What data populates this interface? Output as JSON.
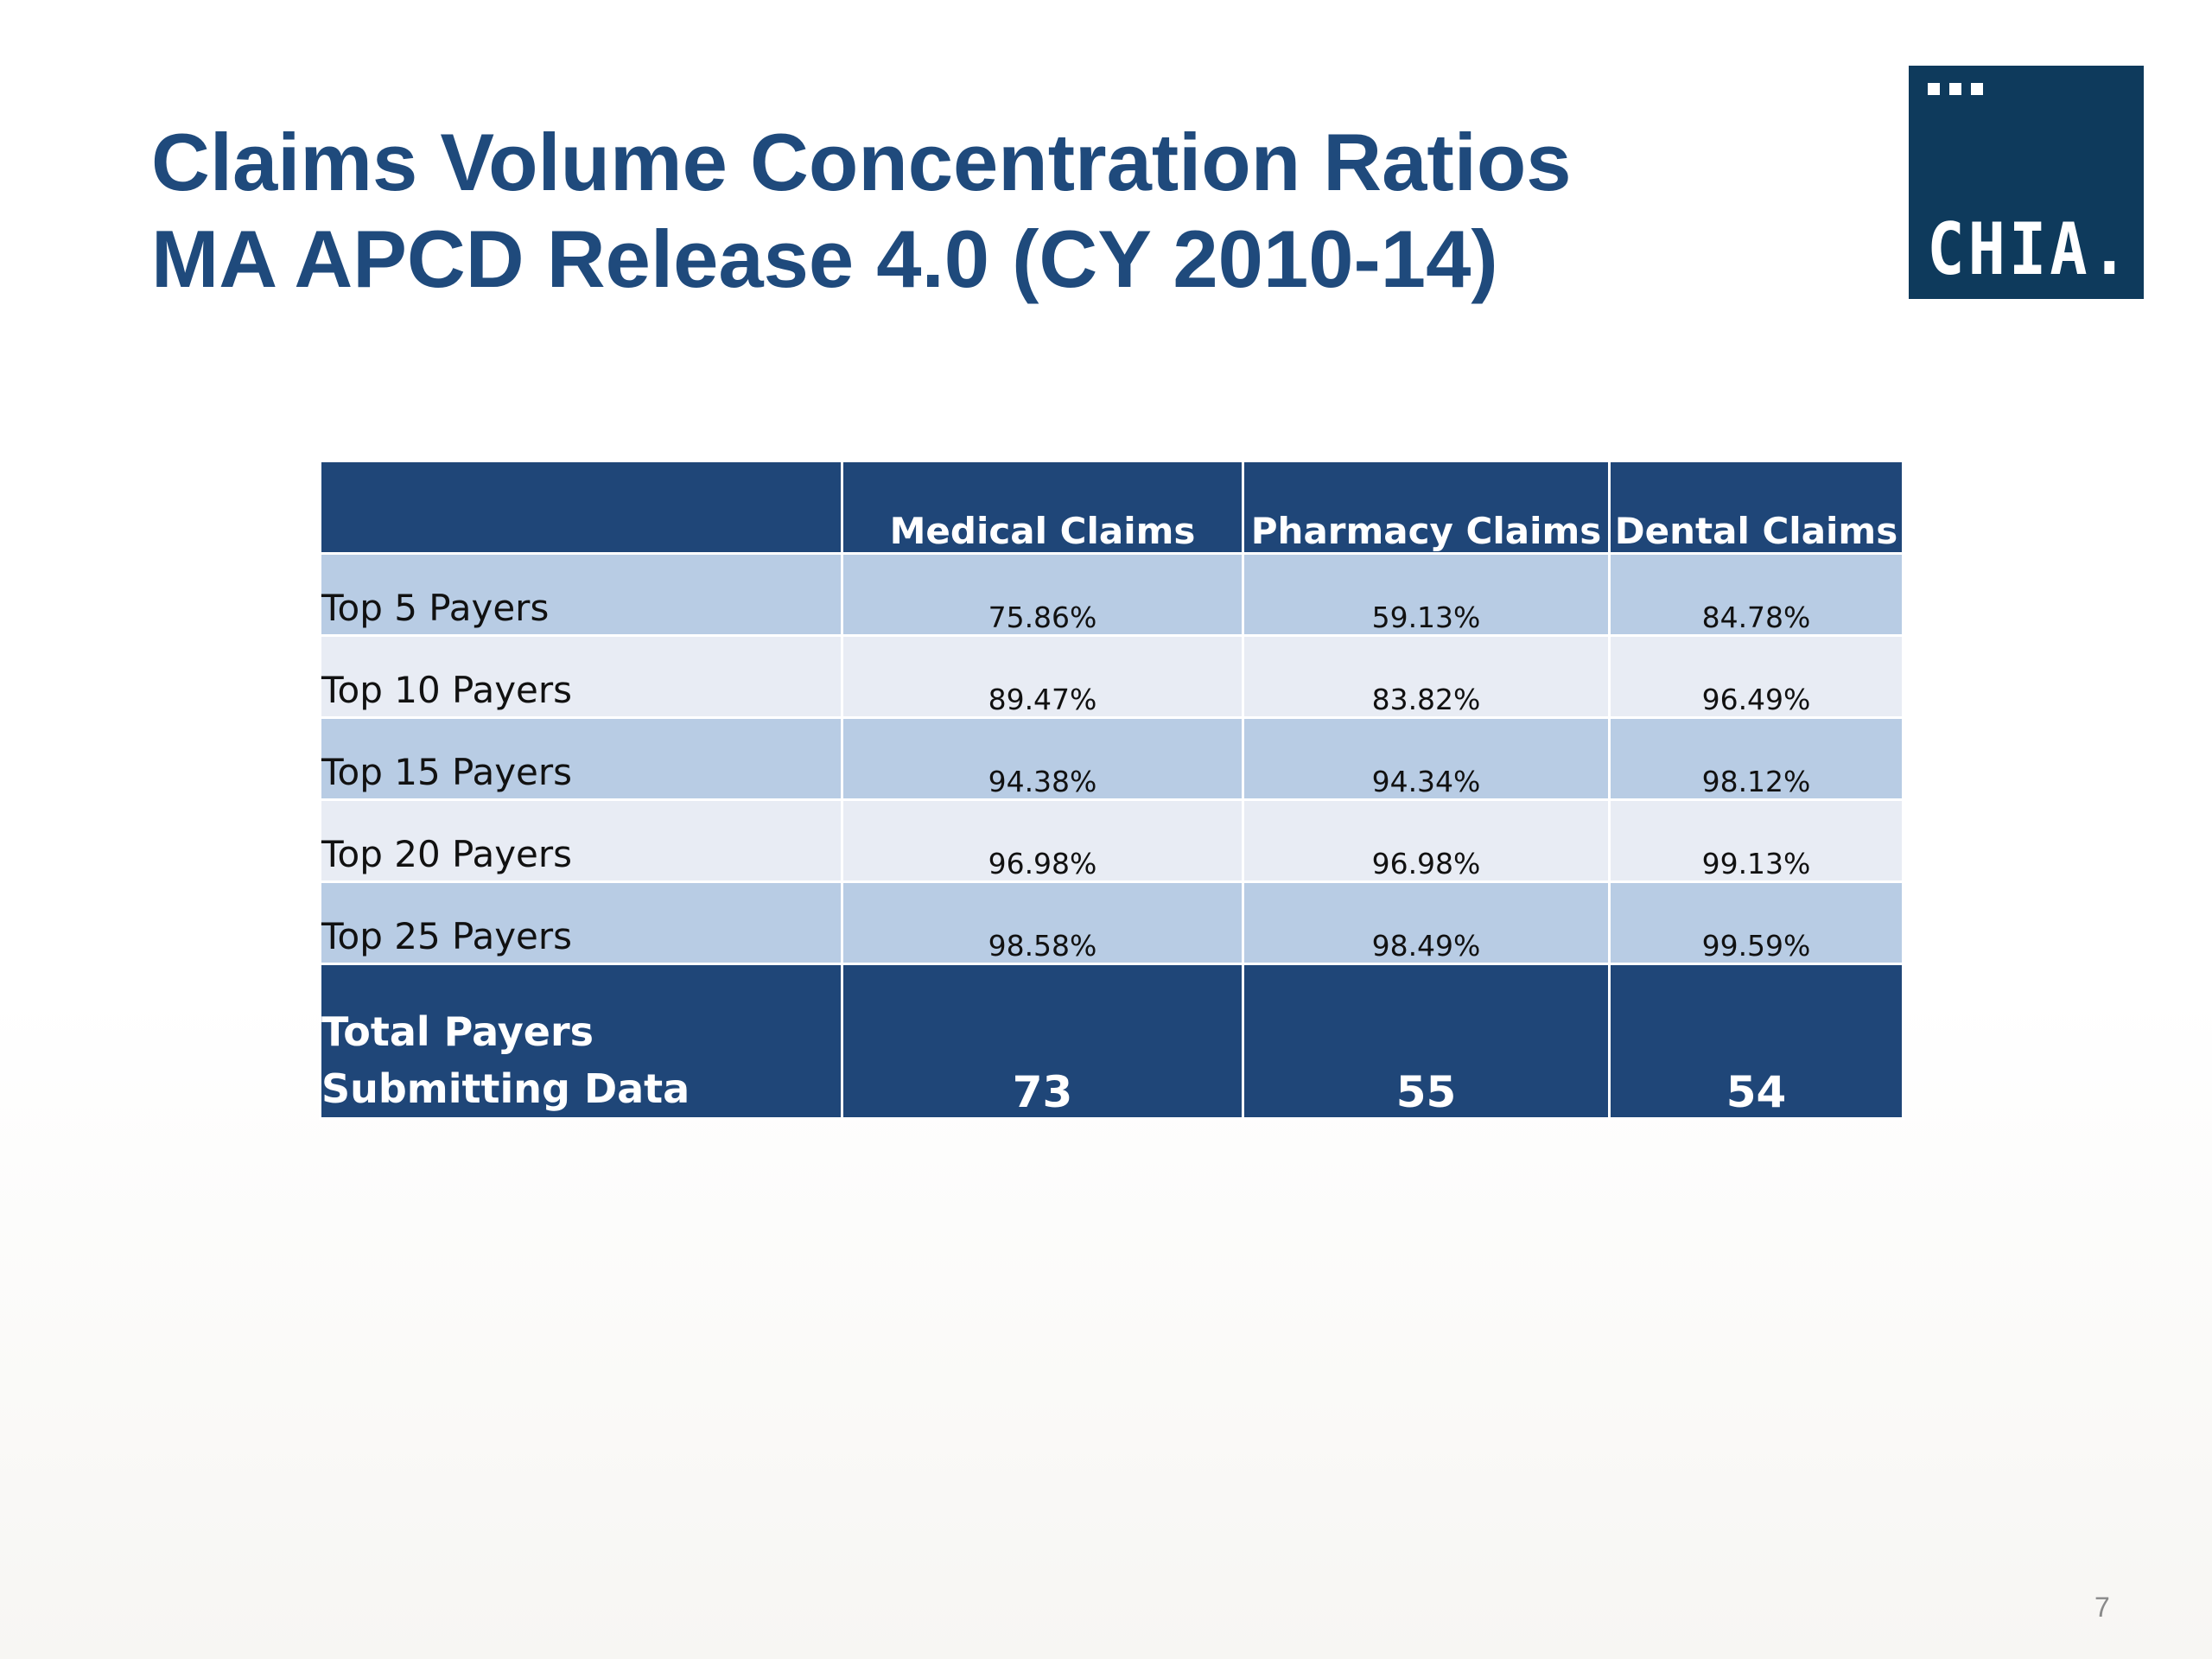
{
  "title": {
    "line1": "Claims Volume Concentration Ratios",
    "line2": "MA APCD Release 4.0 (CY 2010-14)"
  },
  "logo": {
    "text": "CHIA.",
    "color": "#0e3a5c"
  },
  "table": {
    "headers": [
      "",
      "Medical Claims",
      "Pharmacy Claims",
      "Dental Claims"
    ],
    "rows": [
      {
        "label": "Top 5 Payers",
        "values": [
          "75.86%",
          "59.13%",
          "84.78%"
        ]
      },
      {
        "label": "Top 10 Payers",
        "values": [
          "89.47%",
          "83.82%",
          "96.49%"
        ]
      },
      {
        "label": "Top 15 Payers",
        "values": [
          "94.38%",
          "94.34%",
          "98.12%"
        ]
      },
      {
        "label": "Top 20 Payers",
        "values": [
          "96.98%",
          "96.98%",
          "99.13%"
        ]
      },
      {
        "label": "Top 25 Payers",
        "values": [
          "98.58%",
          "98.49%",
          "99.59%"
        ]
      }
    ],
    "total": {
      "label": "Total Payers Submitting Data",
      "values": [
        "73",
        "55",
        "54"
      ]
    },
    "colors": {
      "header": "#1f4678",
      "band_dark": "#b8cce4",
      "band_light": "#e8ecf4"
    }
  },
  "page_number": "7"
}
